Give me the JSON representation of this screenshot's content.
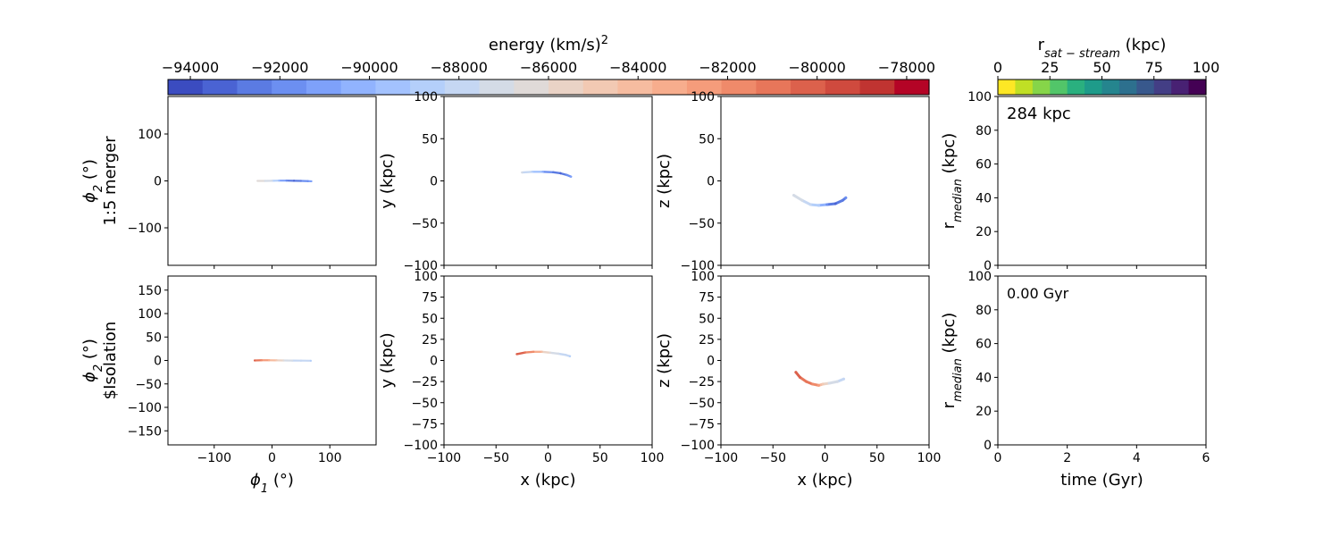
{
  "chart_data": {
    "type": "scatter",
    "figure_kind": "multi-panel stream simulation snapshot",
    "colorbars": [
      {
        "id": "energy",
        "label": "energy (km/s)²",
        "label_base": "energy (km/s)",
        "label_sup": "2",
        "range": [
          -94500,
          -77500
        ],
        "ticks": [
          -94000,
          -92000,
          -90000,
          -88000,
          -86000,
          -84000,
          -82000,
          -80000,
          -78000
        ],
        "tick_labels": [
          "−94000",
          "−92000",
          "−90000",
          "−88000",
          "−86000",
          "−84000",
          "−82000",
          "−80000",
          "−78000"
        ],
        "colormap": "coolwarm",
        "levels": 25,
        "colors": [
          "#3b4cc0",
          "#4a63d3",
          "#5b7be2",
          "#6c8ff1",
          "#7ea1fa",
          "#91b3fe",
          "#a3c2fe",
          "#b4cffa",
          "#c5d7f3",
          "#d4dbe6",
          "#e0dad8",
          "#ead3c6",
          "#f2c9b3",
          "#f6bca0",
          "#f7ad8d",
          "#f59c7b",
          "#ef8a6a",
          "#e7765a",
          "#dc614c",
          "#cf4a3e",
          "#c03431",
          "#b40426"
        ]
      },
      {
        "id": "r_sat_stream",
        "label": "r_sat−stream (kpc)",
        "label_base": "r",
        "label_sub": "sat − stream",
        "label_unit": " (kpc)",
        "range": [
          0,
          100
        ],
        "ticks": [
          0,
          25,
          50,
          75,
          100
        ],
        "tick_labels": [
          "0",
          "25",
          "50",
          "75",
          "100"
        ],
        "colormap": "viridis_r",
        "colors": [
          "#fde725",
          "#c0df25",
          "#86d549",
          "#52c569",
          "#2ab07f",
          "#1e9b8a",
          "#25858e",
          "#2d708e",
          "#38588c",
          "#433e85",
          "#482173",
          "#440154"
        ]
      }
    ],
    "rows": [
      {
        "name_line1": "1:5 merger",
        "phi_xlim": [
          -180,
          180
        ],
        "phi_ylim": [
          -180,
          180
        ],
        "phi_yticks": [
          100,
          0,
          -100
        ],
        "phi_points": [
          [
            -25,
            0,
            -86500
          ],
          [
            -12,
            0,
            -86800
          ],
          [
            0,
            0.3,
            -87500
          ],
          [
            12,
            0.6,
            -89500
          ],
          [
            25,
            0.6,
            -92000
          ],
          [
            38,
            0.3,
            -93000
          ],
          [
            50,
            0,
            -92500
          ],
          [
            62,
            -0.5,
            -91500
          ],
          [
            68,
            -0.8,
            -91000
          ]
        ],
        "xy_points": [
          [
            -25,
            10,
            -87000
          ],
          [
            -15,
            10.8,
            -88500
          ],
          [
            -5,
            10.8,
            -90500
          ],
          [
            5,
            10.2,
            -92500
          ],
          [
            12,
            9,
            -93000
          ],
          [
            18,
            7,
            -92000
          ],
          [
            22,
            5,
            -91000
          ]
        ],
        "xz_points": [
          [
            -30,
            -17,
            -87000
          ],
          [
            -22,
            -23,
            -87500
          ],
          [
            -14,
            -28,
            -88000
          ],
          [
            -6,
            -29,
            -89000
          ],
          [
            2,
            -28,
            -91500
          ],
          [
            10,
            -27,
            -93000
          ],
          [
            17,
            -23,
            -92500
          ],
          [
            20,
            -20,
            -92000
          ]
        ],
        "r_label": "284 kpc"
      },
      {
        "name_line1": "$Isolation",
        "phi_xlim": [
          -180,
          180
        ],
        "phi_ylim": [
          -180,
          180
        ],
        "phi_yticks": [
          150,
          100,
          50,
          0,
          -50,
          -100,
          -150
        ],
        "phi_points": [
          [
            -30,
            0,
            -80500
          ],
          [
            -18,
            0.5,
            -81500
          ],
          [
            -5,
            0.5,
            -83000
          ],
          [
            8,
            0.3,
            -84500
          ],
          [
            20,
            0,
            -86500
          ],
          [
            35,
            -0.3,
            -87500
          ],
          [
            50,
            -0.4,
            -88000
          ],
          [
            67,
            -0.6,
            -88500
          ]
        ],
        "xy_points": [
          [
            -30,
            7.5,
            -80000
          ],
          [
            -22,
            9.5,
            -81000
          ],
          [
            -14,
            10.3,
            -82000
          ],
          [
            -6,
            10.2,
            -84000
          ],
          [
            2,
            9.2,
            -86500
          ],
          [
            10,
            8,
            -87500
          ],
          [
            17,
            6.5,
            -88000
          ],
          [
            21,
            5,
            -88500
          ]
        ],
        "xz_points": [
          [
            -28,
            -14,
            -80000
          ],
          [
            -24,
            -20,
            -80500
          ],
          [
            -18,
            -25,
            -81000
          ],
          [
            -12,
            -28,
            -81500
          ],
          [
            -6,
            -29.5,
            -82500
          ],
          [
            -2,
            -28,
            -85000
          ],
          [
            4,
            -27,
            -87000
          ],
          [
            12,
            -25,
            -87500
          ],
          [
            18,
            -22,
            -88000
          ]
        ],
        "r_label": "0.00 Gyr"
      }
    ],
    "axes": {
      "phi_xlabel_base": "ϕ",
      "phi_xlabel_sub": "1",
      "phi_xlabel_unit": " (°)",
      "phi_ylabel_base": "ϕ",
      "phi_ylabel_sub": "2",
      "phi_ylabel_unit": " (°)",
      "phi_xticks": [
        -100,
        0,
        100
      ],
      "xyz_lim": [
        -100,
        100
      ],
      "xyz_ticks": [
        100,
        50,
        0,
        -50,
        -100
      ],
      "xyz_ticks_bottom": [
        100,
        75,
        50,
        25,
        0,
        -25,
        -50,
        -75,
        -100
      ],
      "x_ticks": [
        -100,
        -50,
        0,
        50,
        100
      ],
      "x_label": "x (kpc)",
      "y_label": "y (kpc)",
      "z_label": "z (kpc)",
      "r_ylim": [
        0,
        100
      ],
      "r_yticks": [
        0,
        20,
        40,
        60,
        80,
        100
      ],
      "r_ylabel_base": "r",
      "r_ylabel_sub": "median",
      "r_ylabel_unit": " (kpc)",
      "time_xlim": [
        0,
        6
      ],
      "time_xticks": [
        0,
        2,
        4,
        6
      ],
      "time_label": "time (Gyr)"
    }
  }
}
